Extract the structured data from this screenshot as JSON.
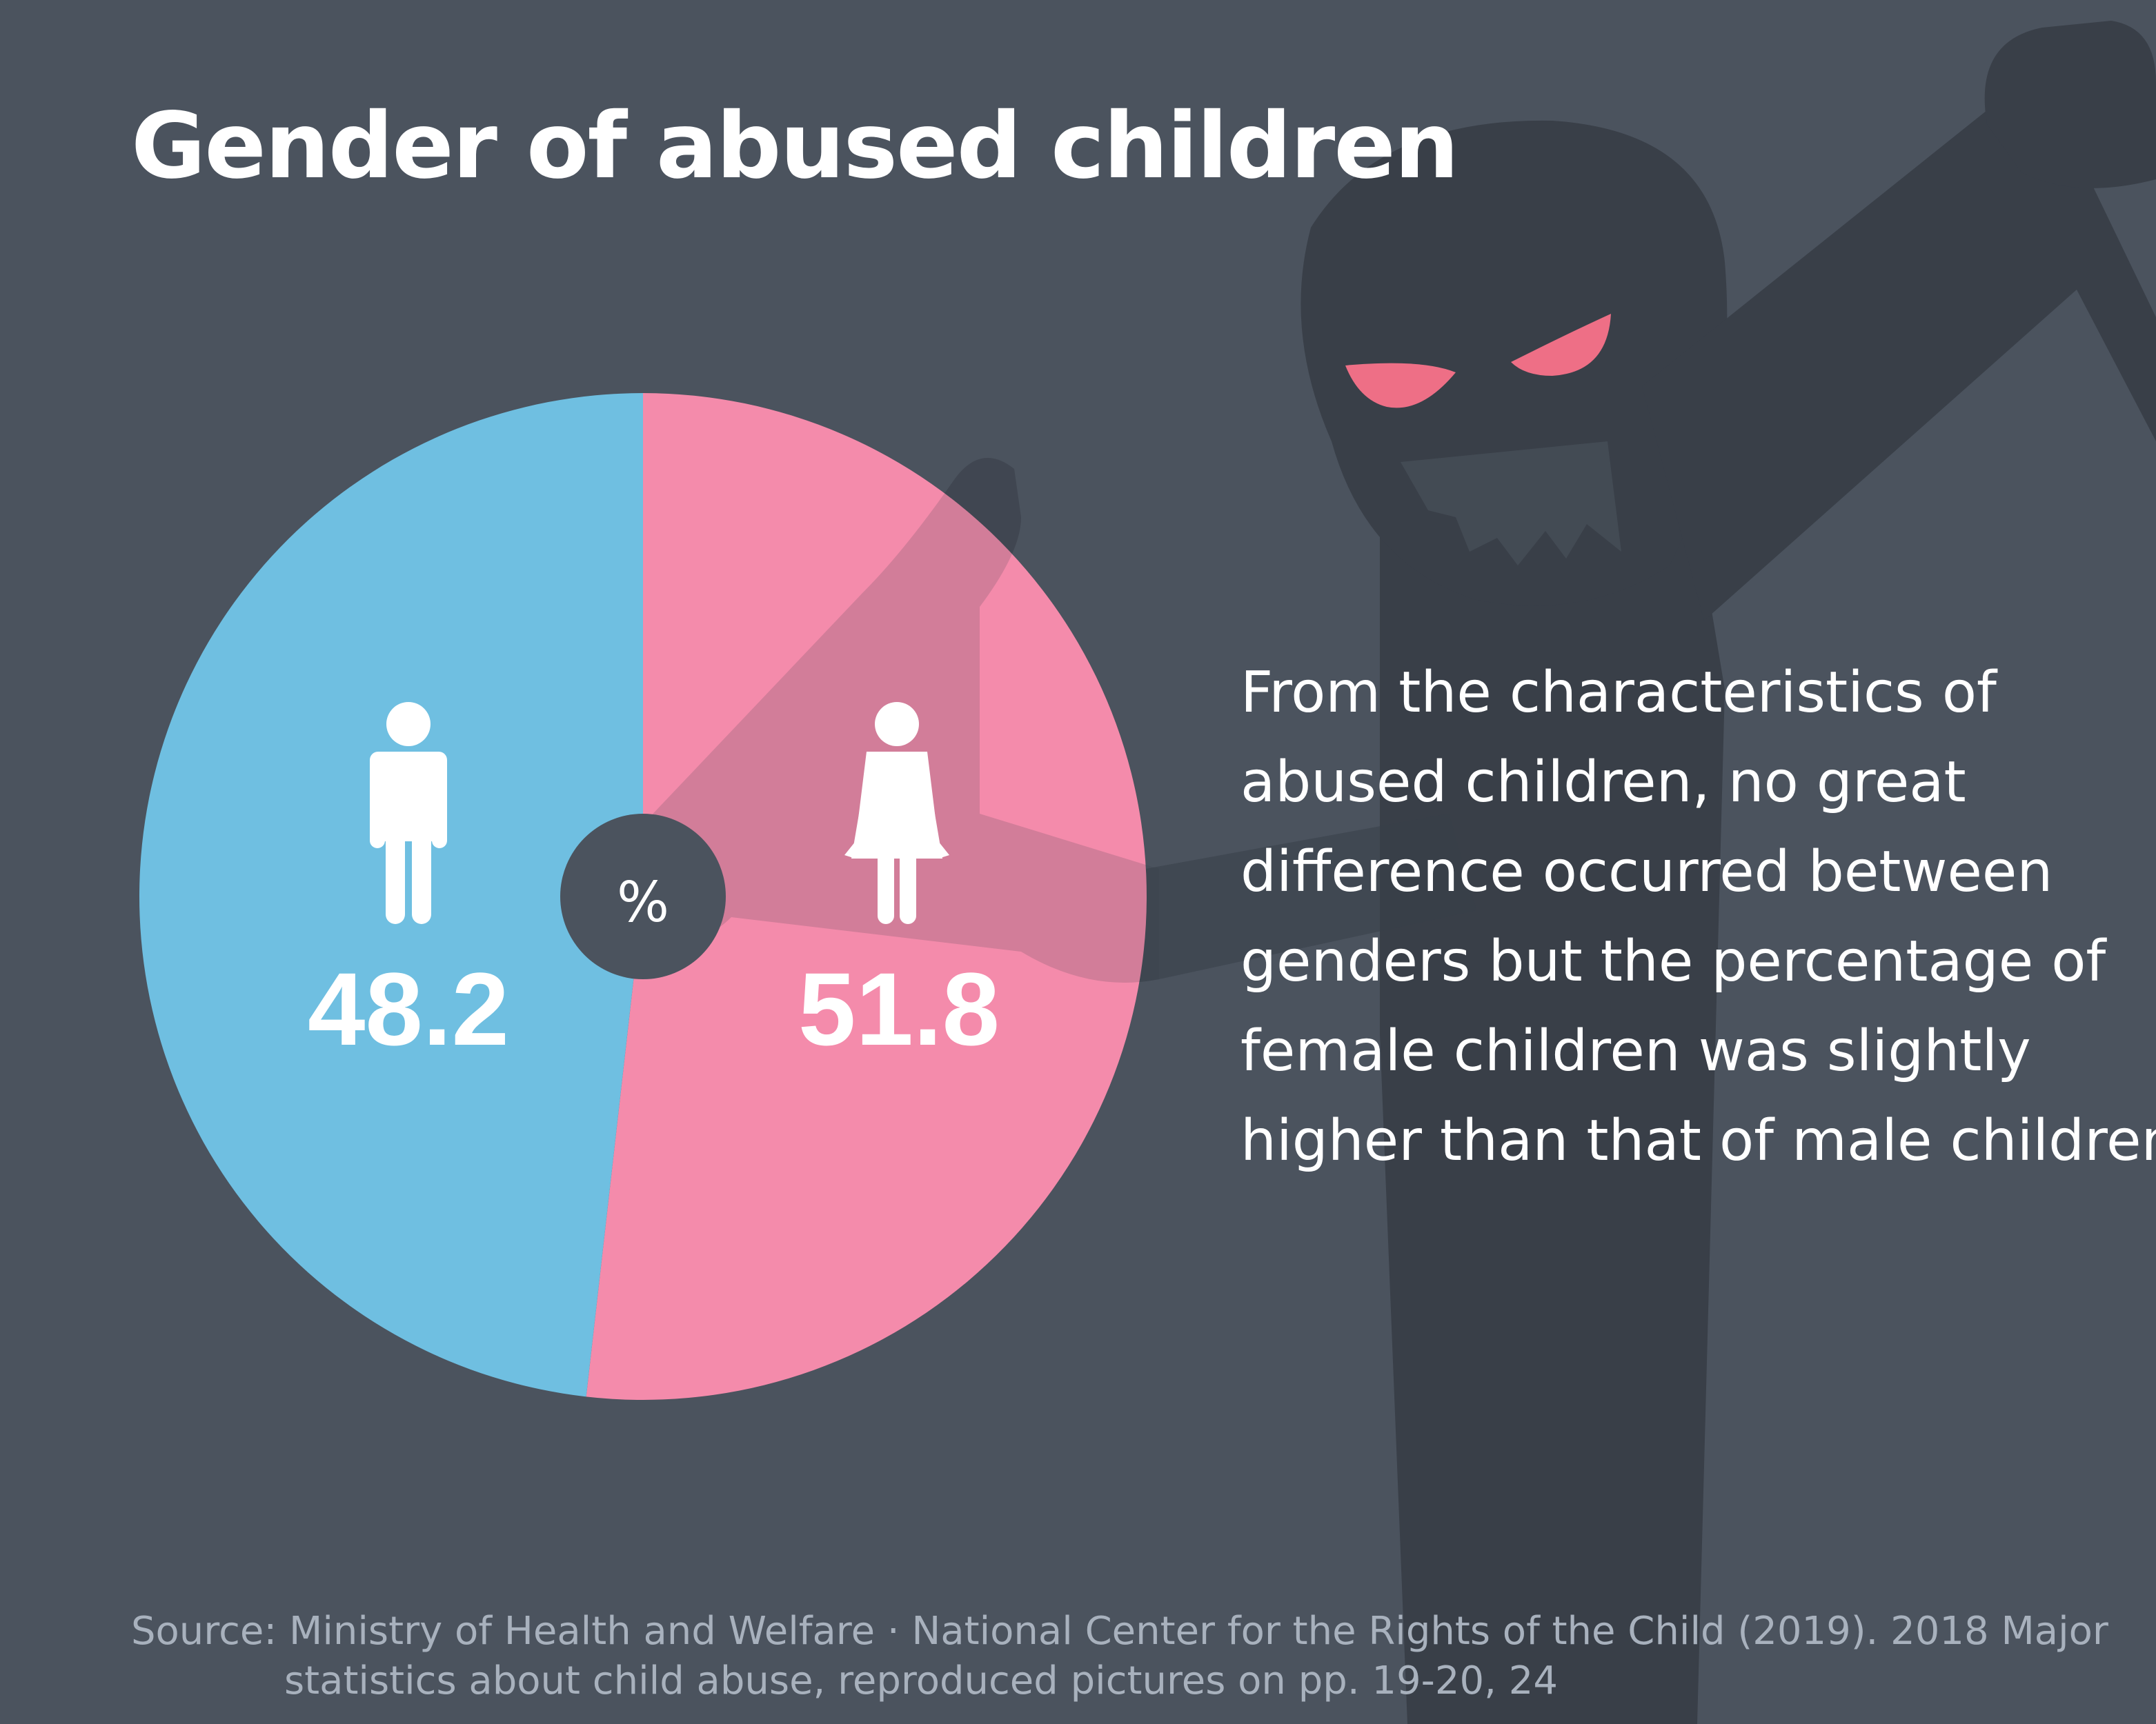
{
  "title": "Gender of abused children",
  "chart_data": {
    "type": "pie",
    "title": "Gender of abused children",
    "unit_label": "%",
    "categories": [
      "Male",
      "Female"
    ],
    "values": [
      48.2,
      51.8
    ],
    "labels": [
      "48.2",
      "51.8"
    ],
    "icons": [
      "male-person-icon",
      "female-person-icon"
    ],
    "colors": [
      "#6fbfe1",
      "#f48bab"
    ],
    "start": "top",
    "direction": "female clockwise from top"
  },
  "description": [
    "From the characteristics of",
    "abused children, no great",
    "difference occurred between",
    "genders but the percentage of",
    "female children was slightly",
    "higher than that of male children."
  ],
  "source": {
    "line1": "Source: Ministry of Health and Welfare · National Center for the Rights of the Child (2019). 2018 Major",
    "line2": "statistics about child abuse, reproduced pictures on pp. 19-20, 24"
  },
  "colors": {
    "background": "#4b535e",
    "shadow": "#393f48",
    "eyes": "#ee6f86"
  }
}
